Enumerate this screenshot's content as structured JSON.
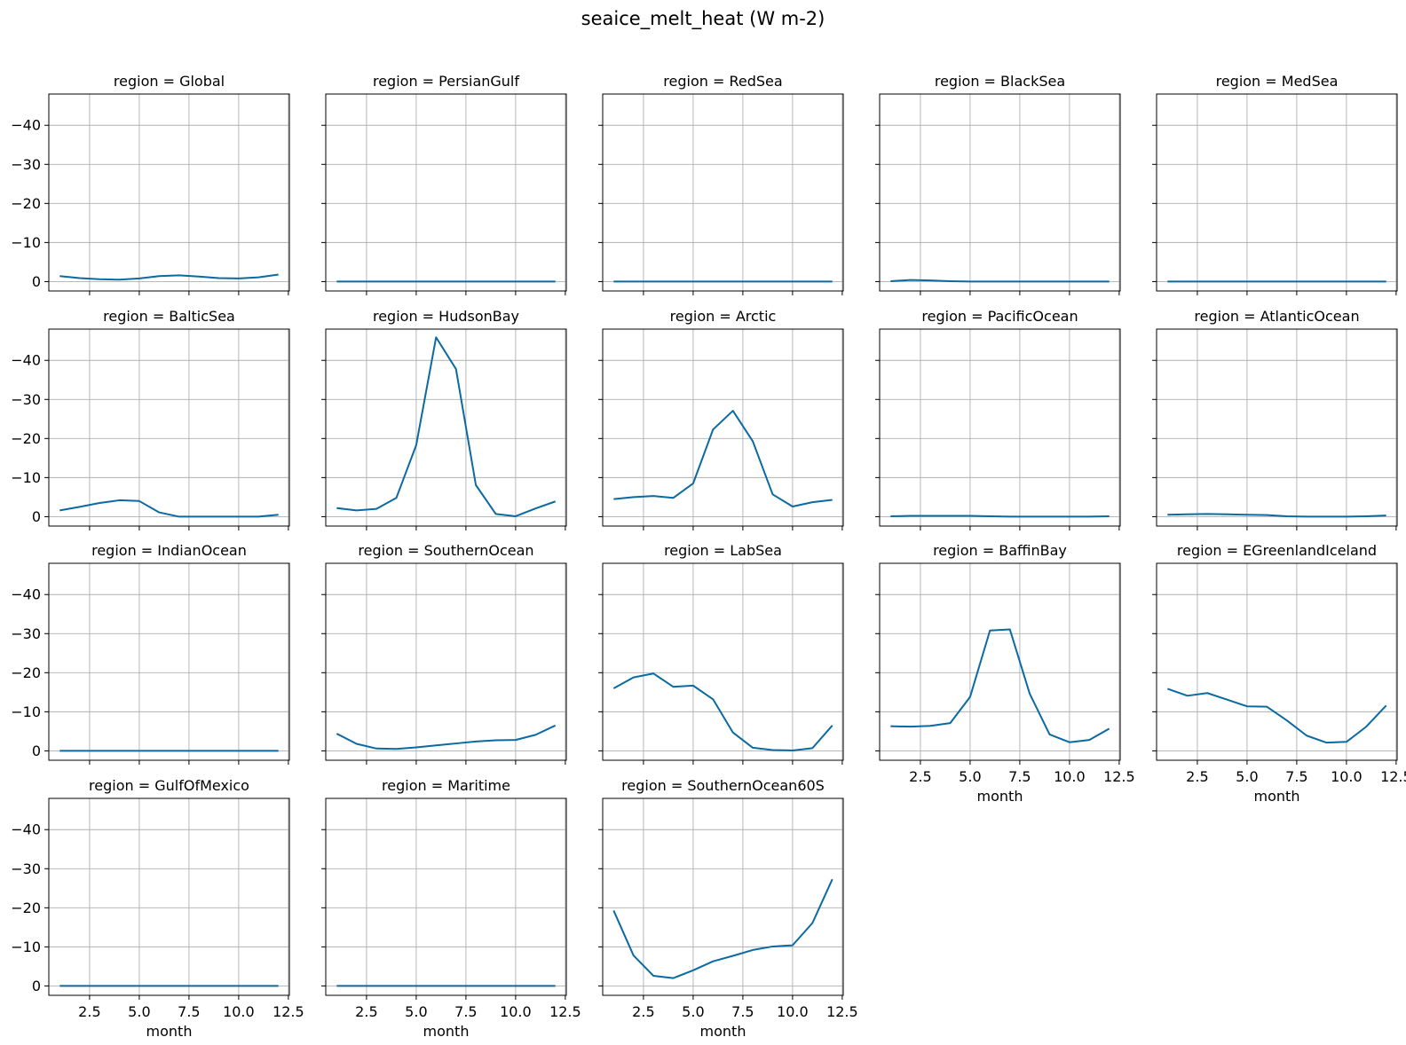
{
  "chart_data": {
    "type": "line",
    "title": "seaice_melt_heat (W m-2)",
    "xlabel": "month",
    "ylabel": "",
    "xlim": [
      0.45,
      12.55
    ],
    "ylim": [
      2.4,
      -48
    ],
    "y_inverted": true,
    "grid": true,
    "line_color": "#0a6aa1",
    "x": [
      1,
      2,
      3,
      4,
      5,
      6,
      7,
      8,
      9,
      10,
      11,
      12
    ],
    "xticks": [
      2.5,
      5.0,
      7.5,
      10.0,
      12.5
    ],
    "xtick_labels": [
      "2.5",
      "5.0",
      "7.5",
      "10.0",
      "12.5"
    ],
    "yticks": [
      -40,
      -30,
      -20,
      -10,
      0
    ],
    "ytick_labels": [
      "−40",
      "−30",
      "−20",
      "−10",
      "0"
    ],
    "panel_title_prefix": "region = ",
    "panels": [
      {
        "region": "Global",
        "values": [
          -1.4,
          -0.9,
          -0.6,
          -0.5,
          -0.8,
          -1.4,
          -1.6,
          -1.3,
          -0.9,
          -0.8,
          -1.1,
          -1.8
        ]
      },
      {
        "region": "PersianGulf",
        "values": [
          0,
          0,
          0,
          0,
          0,
          0,
          0,
          0,
          0,
          0,
          0,
          0
        ]
      },
      {
        "region": "RedSea",
        "values": [
          0,
          0,
          0,
          0,
          0,
          0,
          0,
          0,
          0,
          0,
          0,
          0
        ]
      },
      {
        "region": "BlackSea",
        "values": [
          -0.1,
          -0.4,
          -0.3,
          -0.1,
          0,
          0,
          0,
          0,
          0,
          0,
          0,
          0
        ]
      },
      {
        "region": "MedSea",
        "values": [
          0,
          0,
          0,
          0,
          0,
          0,
          0,
          0,
          0,
          0,
          0,
          0
        ]
      },
      {
        "region": "BalticSea",
        "values": [
          -1.6,
          -2.5,
          -3.5,
          -4.2,
          -4.0,
          -1.1,
          0,
          0,
          0,
          0,
          0,
          -0.5
        ]
      },
      {
        "region": "HudsonBay",
        "values": [
          -2.2,
          -1.6,
          -2.0,
          -4.8,
          -18.3,
          -45.9,
          -37.8,
          -8.1,
          -0.7,
          -0.1,
          -2.1,
          -3.9
        ]
      },
      {
        "region": "Arctic",
        "values": [
          -4.5,
          -5.0,
          -5.3,
          -4.8,
          -8.5,
          -22.3,
          -27.1,
          -19.3,
          -5.7,
          -2.6,
          -3.7,
          -4.3
        ]
      },
      {
        "region": "PacificOcean",
        "values": [
          -0.1,
          -0.2,
          -0.2,
          -0.2,
          -0.2,
          -0.1,
          0,
          0,
          0,
          0,
          0,
          -0.1
        ]
      },
      {
        "region": "AtlanticOcean",
        "values": [
          -0.5,
          -0.6,
          -0.7,
          -0.6,
          -0.5,
          -0.4,
          -0.1,
          0,
          0,
          0,
          -0.1,
          -0.3
        ]
      },
      {
        "region": "IndianOcean",
        "values": [
          0,
          0,
          0,
          0,
          0,
          0,
          0,
          0,
          0,
          0,
          0,
          0
        ]
      },
      {
        "region": "SouthernOcean",
        "values": [
          -4.4,
          -1.8,
          -0.6,
          -0.5,
          -0.9,
          -1.4,
          -1.9,
          -2.4,
          -2.7,
          -2.8,
          -4.1,
          -6.5
        ]
      },
      {
        "region": "LabSea",
        "values": [
          -16.0,
          -18.8,
          -19.8,
          -16.4,
          -16.7,
          -13.2,
          -4.7,
          -0.8,
          -0.2,
          -0.1,
          -0.7,
          -6.5
        ]
      },
      {
        "region": "BaffinBay",
        "values": [
          -6.3,
          -6.2,
          -6.4,
          -7.1,
          -13.8,
          -30.8,
          -31.1,
          -14.6,
          -4.2,
          -2.2,
          -2.8,
          -5.7
        ]
      },
      {
        "region": "EGreenlandIceland",
        "values": [
          -15.9,
          -14.1,
          -14.8,
          -13.1,
          -11.4,
          -11.3,
          -7.8,
          -3.9,
          -2.1,
          -2.3,
          -6.2,
          -11.6
        ]
      },
      {
        "region": "GulfOfMexico",
        "values": [
          0,
          0,
          0,
          0,
          0,
          0,
          0,
          0,
          0,
          0,
          0,
          0
        ]
      },
      {
        "region": "Maritime",
        "values": [
          0,
          0,
          0,
          0,
          0,
          0,
          0,
          0,
          0,
          0,
          0,
          0
        ]
      },
      {
        "region": "SouthernOcean60S",
        "values": [
          -19.3,
          -7.8,
          -2.6,
          -2.0,
          -4.0,
          -6.3,
          -7.7,
          -9.2,
          -10.1,
          -10.4,
          -16.1,
          -27.3
        ]
      }
    ]
  }
}
